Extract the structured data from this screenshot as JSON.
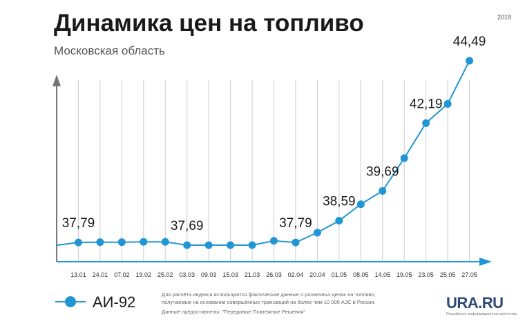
{
  "header": {
    "title": "Динамика цен на топливо",
    "subtitle": "Московская область",
    "year": "2018"
  },
  "colors": {
    "line": "#2196d4",
    "axis": "#2196d4",
    "grid": "#cccccc",
    "vertical_axis": "#777777"
  },
  "chart_data": {
    "type": "line",
    "categories": [
      "",
      "13.01",
      "24.01",
      "07.02",
      "19.02",
      "25.02",
      "03.03",
      "09.03",
      "15.03",
      "21.03",
      "26.03",
      "02.04",
      "20.04",
      "01.05",
      "08.05",
      "14.05",
      "19.05",
      "23.05",
      "25.05",
      "27.05"
    ],
    "series": [
      {
        "name": "АИ-92",
        "values": [
          null,
          37.79,
          37.8,
          37.8,
          37.81,
          37.81,
          37.69,
          37.69,
          37.69,
          37.69,
          37.85,
          37.79,
          38.15,
          38.59,
          39.2,
          39.69,
          40.9,
          42.19,
          42.9,
          44.49
        ]
      }
    ],
    "data_labels": [
      {
        "index": 1,
        "text": "37,79"
      },
      {
        "index": 6,
        "text": "37,69"
      },
      {
        "index": 11,
        "text": "37,79"
      },
      {
        "index": 13,
        "text": "38,59"
      },
      {
        "index": 15,
        "text": "39,69"
      },
      {
        "index": 17,
        "text": "42,19"
      },
      {
        "index": 19,
        "text": "44,49"
      }
    ],
    "grid": true,
    "legend": "bottom-left"
  },
  "legend": {
    "label": "АИ-92"
  },
  "notes": {
    "line1": "Для расчёта индекса используются фактические данные о розничных ценах на топливо,",
    "line2": "получаемые на основании совершённых транзакций на более чем 10 000 АЗС в России.",
    "line3": "Данные предоставлены: \"Передовые Платежные Решения\""
  },
  "logo": {
    "name": "URA.RU",
    "tagline": "Российское информационное агентство"
  }
}
